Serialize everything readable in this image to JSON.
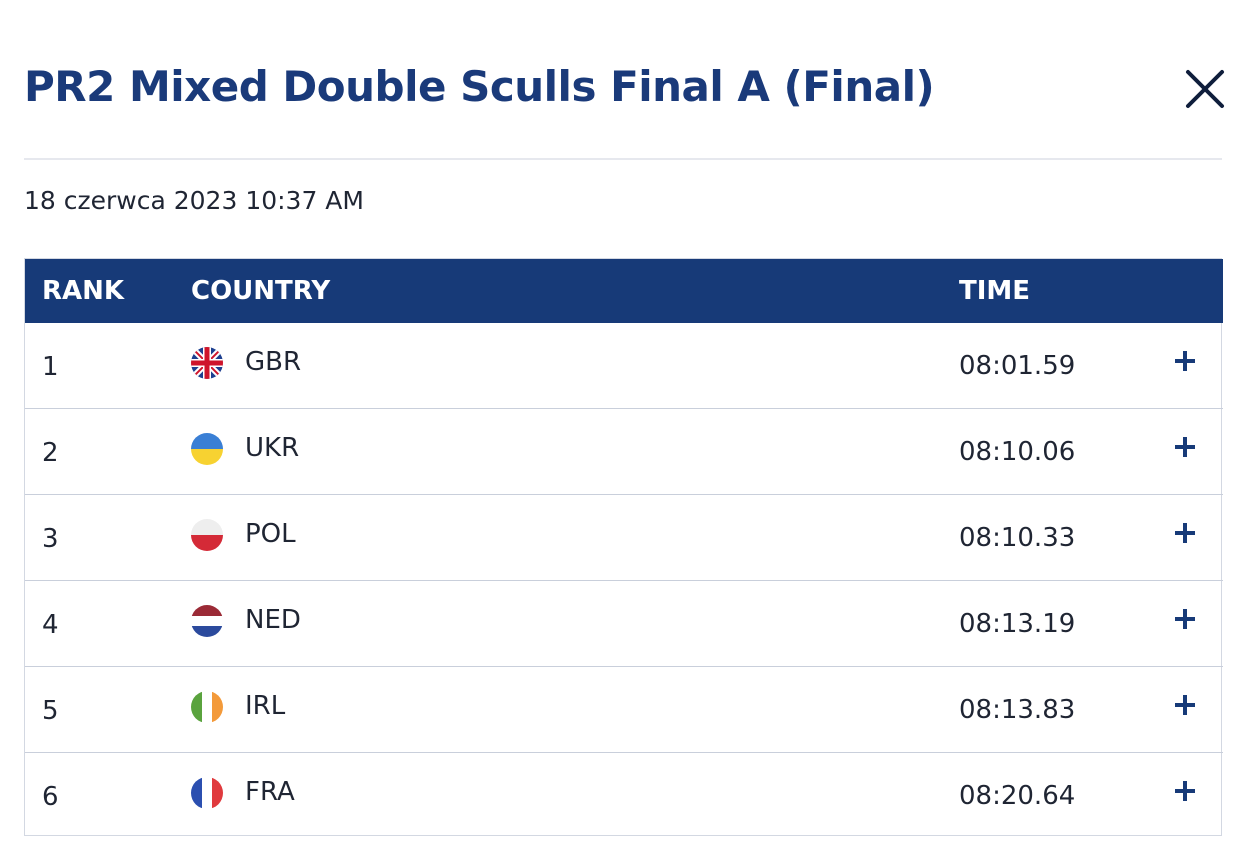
{
  "header": {
    "title": "PR2 Mixed Double Sculls Final A (Final)",
    "close_icon": "close-icon"
  },
  "date": "18 czerwca 2023 10:37 AM",
  "table": {
    "columns": [
      "RANK",
      "COUNTRY",
      "TIME"
    ],
    "rows": [
      {
        "rank": "1",
        "country": "GBR",
        "time": "08:01.59",
        "flag": "gbr-flag-icon",
        "expand_icon": "plus-icon"
      },
      {
        "rank": "2",
        "country": "UKR",
        "time": "08:10.06",
        "flag": "ukr-flag-icon",
        "expand_icon": "plus-icon"
      },
      {
        "rank": "3",
        "country": "POL",
        "time": "08:10.33",
        "flag": "pol-flag-icon",
        "expand_icon": "plus-icon"
      },
      {
        "rank": "4",
        "country": "NED",
        "time": "08:13.19",
        "flag": "ned-flag-icon",
        "expand_icon": "plus-icon"
      },
      {
        "rank": "5",
        "country": "IRL",
        "time": "08:13.83",
        "flag": "irl-flag-icon",
        "expand_icon": "plus-icon"
      },
      {
        "rank": "6",
        "country": "FRA",
        "time": "08:20.64",
        "flag": "fra-flag-icon",
        "expand_icon": "plus-icon"
      }
    ]
  },
  "colors": {
    "title": "#1a3a7a",
    "header_bg": "#173a78",
    "header_text": "#ffffff",
    "accent": "#173a78"
  }
}
